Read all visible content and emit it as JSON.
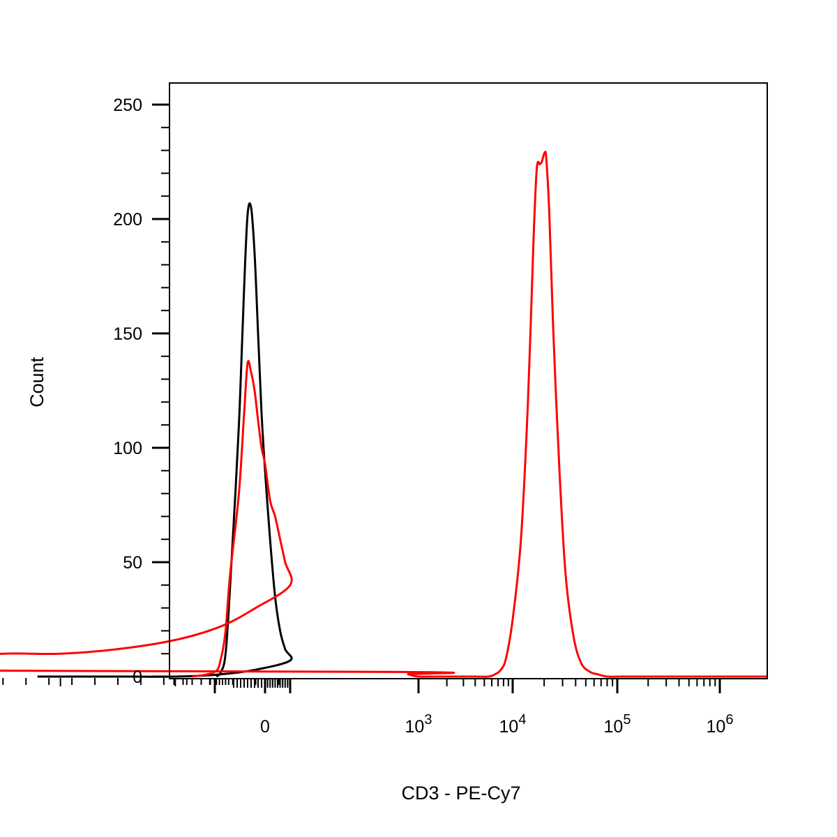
{
  "chart_data": {
    "type": "line",
    "title": "",
    "xlabel": "CD3 - PE-Cy7",
    "ylabel": "Count",
    "x_scale": "biexponential",
    "xlim": [
      -300,
      1500000
    ],
    "ylim": [
      -3,
      260
    ],
    "y_ticks": [
      0,
      50,
      100,
      150,
      200,
      250
    ],
    "x_tick_labels": [
      {
        "value": 0,
        "base": "0",
        "exp": ""
      },
      {
        "value": 1000,
        "base": "10",
        "exp": "3"
      },
      {
        "value": 10000,
        "base": "10",
        "exp": "4"
      },
      {
        "value": 100000,
        "base": "10",
        "exp": "5"
      },
      {
        "value": 1000000,
        "base": "10",
        "exp": "6"
      }
    ],
    "grid": false,
    "legend": "none",
    "series": [
      {
        "color": "#000000",
        "x": [
          -190,
          -160,
          -130,
          -100,
          -75,
          -60,
          -50,
          -40,
          -30,
          -20,
          -10,
          0,
          20,
          40,
          60,
          80,
          100,
          130,
          160,
          200,
          240,
          280,
          320
        ],
        "y": [
          0,
          2,
          10,
          40,
          110,
          170,
          202,
          205,
          185,
          150,
          115,
          90,
          60,
          35,
          20,
          12,
          7,
          3,
          1,
          0,
          0,
          0,
          0
        ]
      },
      {
        "color": "#ff0000",
        "x": [
          -250,
          -200,
          -160,
          -130,
          -100,
          -75,
          -60,
          -50,
          -40,
          -30,
          -20,
          -10,
          0,
          20,
          40,
          60,
          80,
          100,
          130,
          160,
          200,
          250,
          300,
          350,
          400,
          450,
          500,
          600,
          700,
          800,
          1000,
          1500,
          2500,
          4000,
          5500,
          6500,
          7500,
          8500,
          10000,
          12000,
          14000,
          15800,
          17000,
          18200,
          19000,
          20200,
          21000,
          22500,
          24500,
          28000,
          32000,
          38000,
          45000,
          55000,
          65000,
          80000,
          110000,
          200000,
          500000,
          1500000
        ],
        "y": [
          0,
          2,
          8,
          20,
          45,
          80,
          115,
          137,
          133,
          125,
          112,
          100,
          93,
          77,
          70,
          60,
          50,
          40,
          30,
          22,
          16,
          12,
          10,
          10,
          8,
          6,
          4,
          3,
          2,
          1,
          0,
          0,
          0,
          0,
          0,
          1,
          3,
          8,
          25,
          60,
          120,
          190,
          222,
          224,
          225,
          229,
          226,
          200,
          150,
          90,
          45,
          18,
          6,
          2,
          1,
          0,
          0,
          0,
          0,
          0
        ]
      }
    ]
  }
}
